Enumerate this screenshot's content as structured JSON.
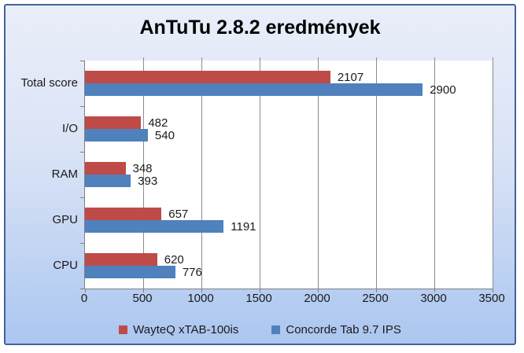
{
  "chart_data": {
    "type": "bar",
    "orientation": "horizontal",
    "title": "AnTuTu 2.8.2 eredmények",
    "categories": [
      "Total score",
      "I/O",
      "RAM",
      "GPU",
      "CPU"
    ],
    "series": [
      {
        "name": "WayteQ xTAB-100is",
        "color": "#BE4B48",
        "values": [
          2107,
          482,
          348,
          657,
          620
        ]
      },
      {
        "name": "Concorde Tab 9.7 IPS",
        "color": "#4F81BD",
        "values": [
          2900,
          540,
          393,
          1191,
          776
        ]
      }
    ],
    "xlim": [
      0,
      3500
    ],
    "x_ticks": [
      0,
      500,
      1000,
      1500,
      2000,
      2500,
      3000,
      3500
    ],
    "grid": "vertical",
    "legend_position": "bottom",
    "data_labels": true
  },
  "colors": {
    "frame_border": "#46619B",
    "bg_top": "#EAEEF9",
    "bg_bottom": "#ABC6F0",
    "plot_bg": "#FFFFFF",
    "gridline": "#8C8C8C",
    "axis": "#808080",
    "text": "#1A1A1A"
  }
}
